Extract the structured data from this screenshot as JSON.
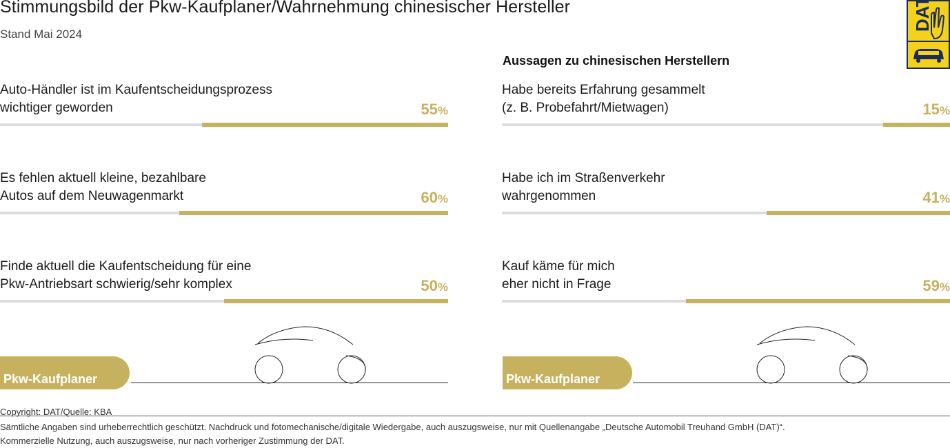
{
  "header": {
    "title": "Stimmungsbild der Pkw-Kaufplaner/Wahrnehmung chinesischer Hersteller",
    "subtitle": "Stand Mai 2024",
    "logo_text": "DAT"
  },
  "right_section_heading": "Aussagen zu chinesischen Herstellern",
  "chart_data": [
    {
      "type": "bar",
      "orientation": "horizontal",
      "title": "",
      "categories": [
        "Auto-Händler ist im Kaufentscheidungsprozess wichtiger geworden",
        "Es fehlen aktuell kleine, bezahlbare Autos auf dem Neuwagenmarkt",
        "Finde aktuell die Kaufentscheidung für eine Pkw-Antriebsart schwierig/sehr komplex"
      ],
      "values": [
        55,
        60,
        50
      ],
      "value_suffix": "%",
      "xlim": [
        0,
        100
      ],
      "grid": false,
      "bar_color": "#c6b15f",
      "track_color": "#dcdcdc",
      "footer_label": "Pkw-Kaufplaner",
      "items": [
        {
          "line1": "Auto-Händler ist im Kaufentscheidungsprozess",
          "line2": "wichtiger geworden",
          "value": 55
        },
        {
          "line1": "Es fehlen aktuell kleine, bezahlbare",
          "line2": "Autos auf dem Neuwagenmarkt",
          "value": 60
        },
        {
          "line1": "Finde aktuell die Kaufentscheidung für eine",
          "line2": "Pkw-Antriebsart schwierig/sehr komplex",
          "value": 50
        }
      ]
    },
    {
      "type": "bar",
      "orientation": "horizontal",
      "title": "Aussagen zu chinesischen Herstellern",
      "categories": [
        "Habe bereits Erfahrung gesammelt (z. B. Probefahrt/Mietwagen)",
        "Habe ich im Straßenverkehr wahrgenommen",
        "Kauf käme für mich eher nicht in Frage"
      ],
      "values": [
        15,
        41,
        59
      ],
      "value_suffix": "%",
      "xlim": [
        0,
        100
      ],
      "grid": false,
      "bar_color": "#c6b15f",
      "track_color": "#dcdcdc",
      "footer_label": "Pkw-Kaufplaner",
      "items": [
        {
          "line1": "Habe bereits Erfahrung gesammelt",
          "line2": "(z. B. Probefahrt/Mietwagen)",
          "value": 15
        },
        {
          "line1": "Habe ich im Straßenverkehr",
          "line2": "wahrgenommen",
          "value": 41
        },
        {
          "line1": "Kauf käme für mich",
          "line2": "eher nicht in Frage",
          "value": 59
        }
      ]
    }
  ],
  "footer": {
    "copyright": "Copyright: DAT/Quelle: KBA",
    "legal_line1": "Sämtliche Angaben sind urheberrechtlich geschützt. Nachdruck und fotomechanische/digitale Wiedergabe, auch auszugsweise, nur mit Quellenangabe „Deutsche Automobil Treuhand GmbH (DAT)“.",
    "legal_line2": "Kommerzielle Nutzung, auch auszugsweise, nur nach vorheriger Zustimmung der DAT."
  }
}
